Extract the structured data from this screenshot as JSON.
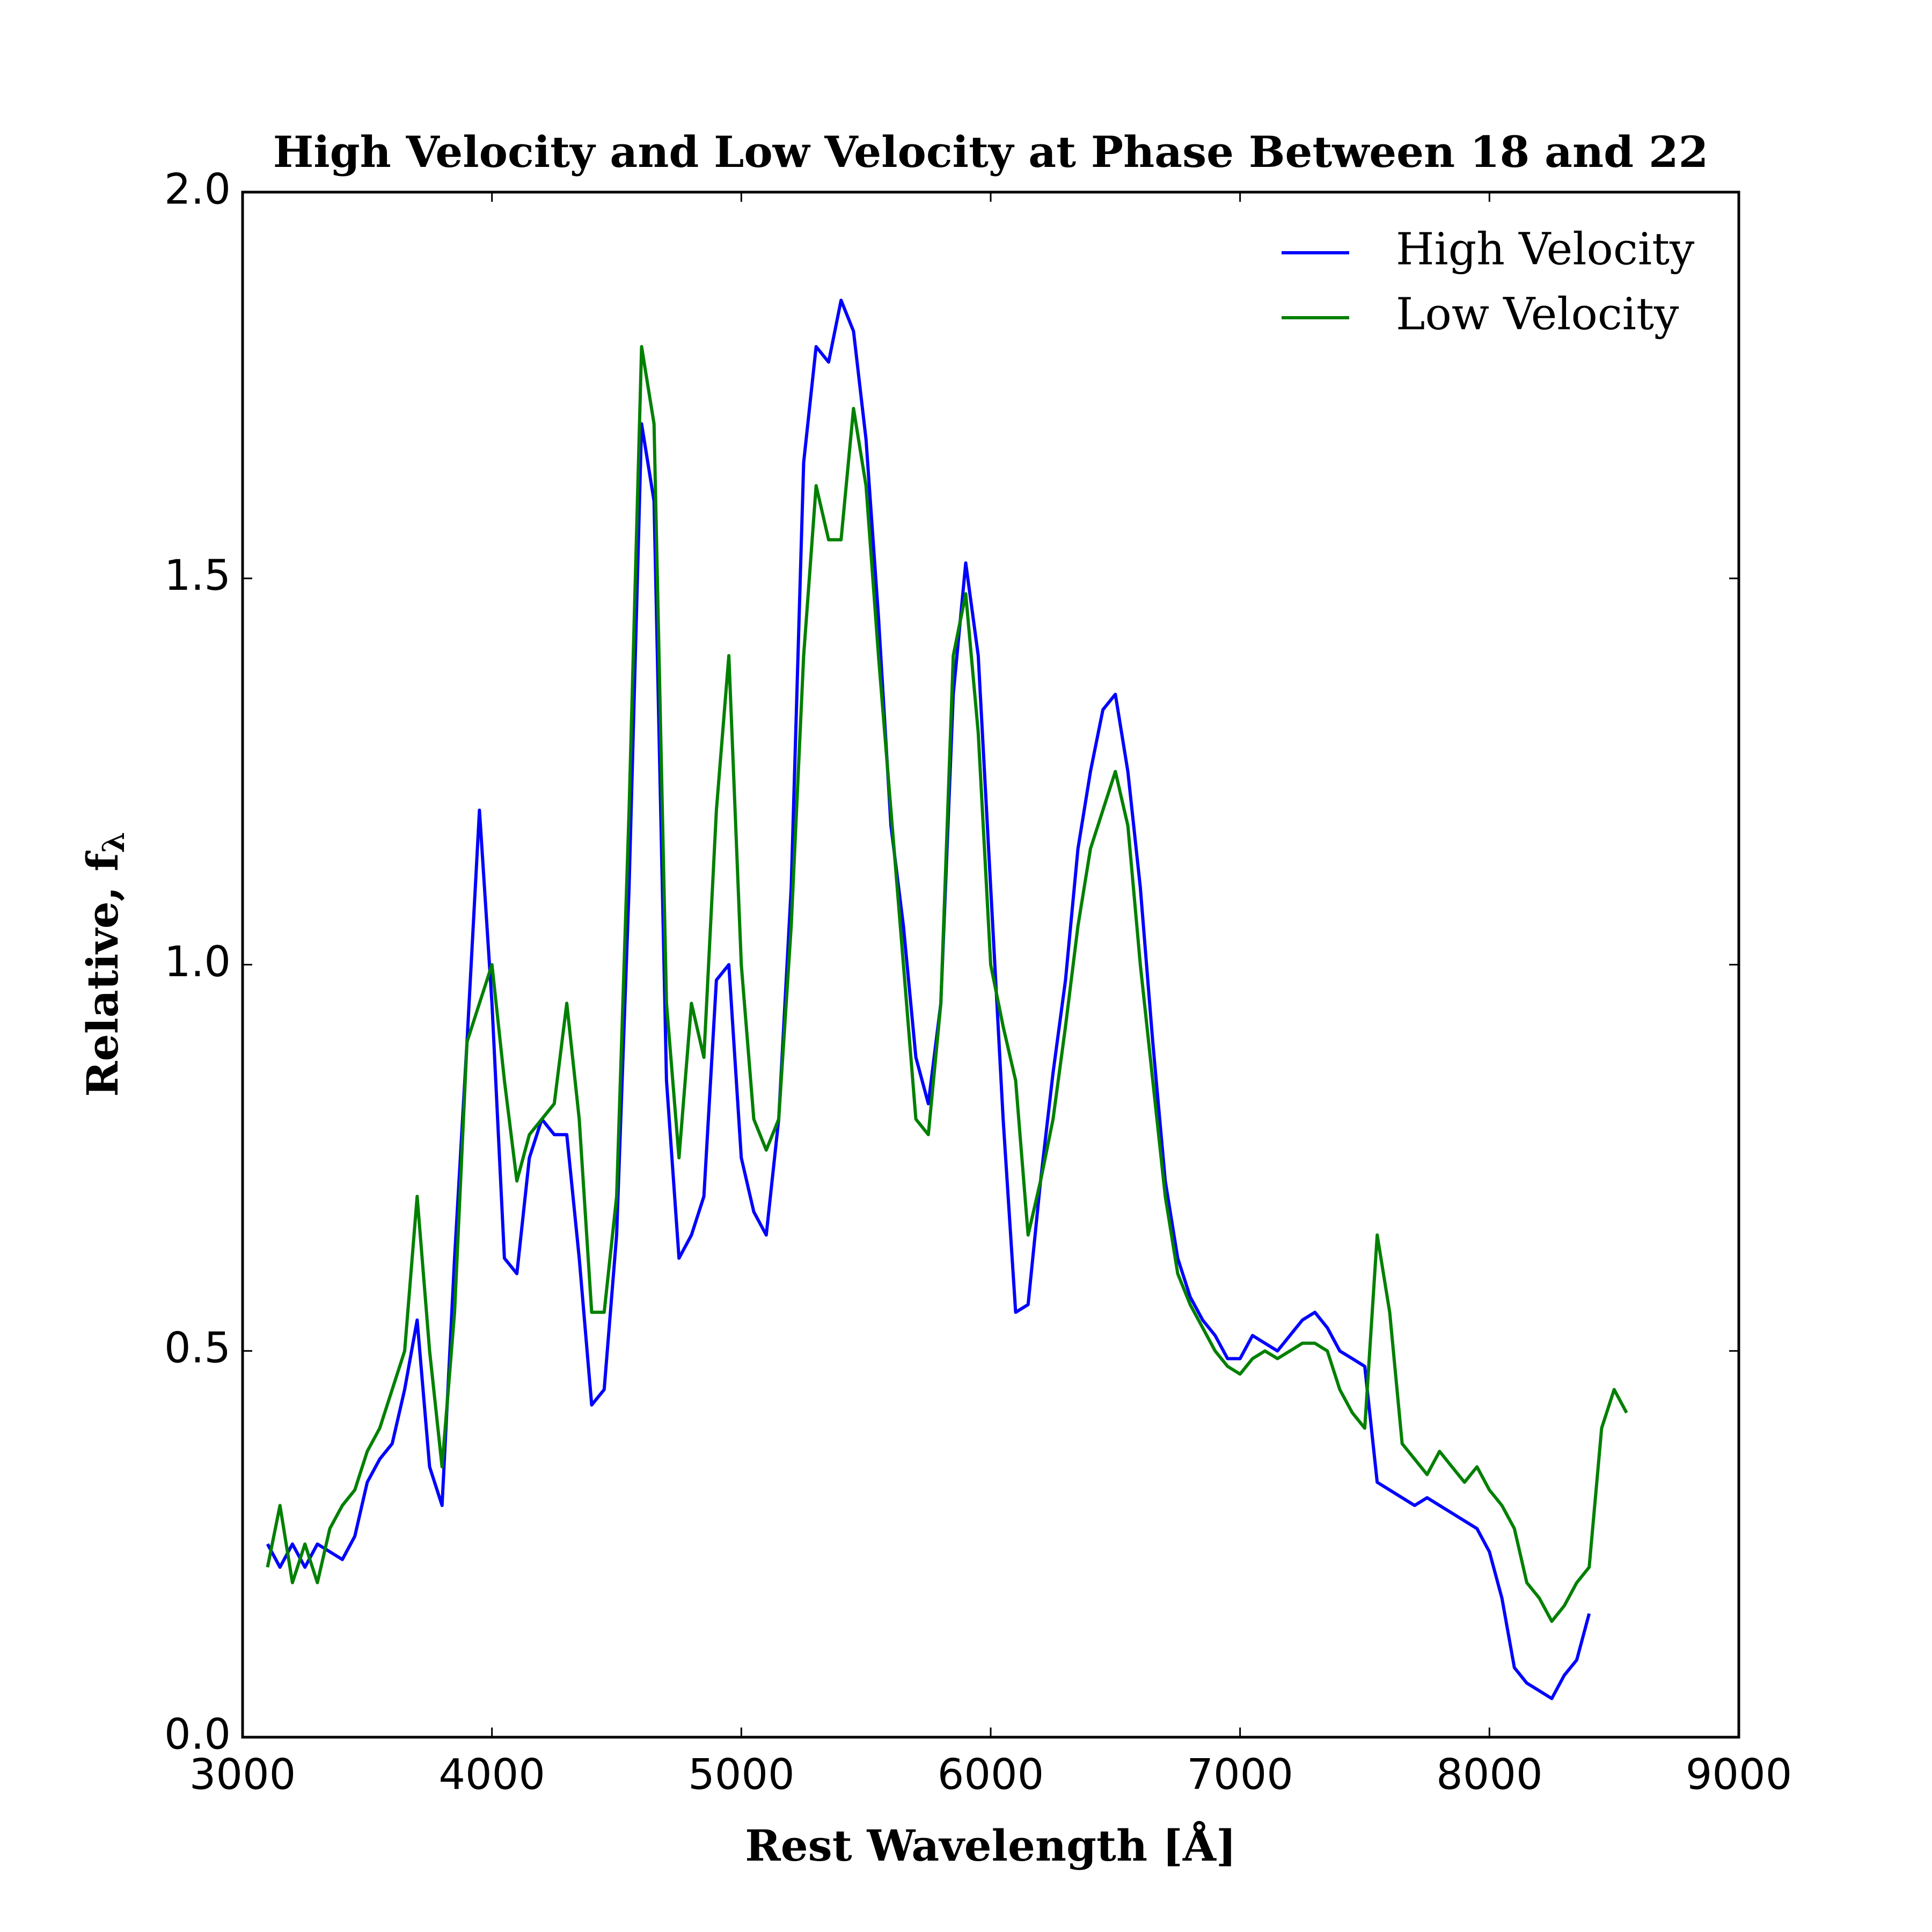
{
  "chart_data": {
    "type": "line",
    "title": "High Velocity and Low Velocity at Phase Between 18 and 22",
    "x_label": "Rest Wavelength [Å]",
    "y_label": "Relative, f",
    "y_label_sub": "λ",
    "x": [
      3100,
      3150,
      3200,
      3250,
      3300,
      3350,
      3400,
      3450,
      3500,
      3550,
      3600,
      3650,
      3700,
      3750,
      3800,
      3850,
      3900,
      3950,
      4000,
      4050,
      4100,
      4150,
      4200,
      4250,
      4300,
      4350,
      4400,
      4450,
      4500,
      4550,
      4600,
      4650,
      4700,
      4750,
      4800,
      4850,
      4900,
      4950,
      5000,
      5050,
      5100,
      5150,
      5200,
      5250,
      5300,
      5350,
      5400,
      5450,
      5500,
      5550,
      5600,
      5650,
      5700,
      5750,
      5800,
      5850,
      5900,
      5950,
      6000,
      6050,
      6100,
      6150,
      6200,
      6250,
      6300,
      6350,
      6400,
      6450,
      6500,
      6550,
      6600,
      6650,
      6700,
      6750,
      6800,
      6850,
      6900,
      6950,
      7000,
      7050,
      7100,
      7150,
      7200,
      7250,
      7300,
      7350,
      7400,
      7450,
      7500,
      7550,
      7600,
      7650,
      7700,
      7750,
      7800,
      7850,
      7900,
      7950,
      8000,
      8050,
      8100,
      8150,
      8200,
      8250,
      8300,
      8350,
      8400,
      8450,
      8500,
      8550
    ],
    "series": [
      {
        "name": "High Velocity",
        "color": "#0000ff",
        "values": [
          0.25,
          0.22,
          0.25,
          0.22,
          0.25,
          0.24,
          0.23,
          0.26,
          0.33,
          0.36,
          0.38,
          0.45,
          0.54,
          0.35,
          0.3,
          0.62,
          0.9,
          1.2,
          0.95,
          0.62,
          0.6,
          0.75,
          0.8,
          0.78,
          0.78,
          0.62,
          0.43,
          0.45,
          0.65,
          1.1,
          1.7,
          1.6,
          0.85,
          0.62,
          0.65,
          0.7,
          0.98,
          1.0,
          0.75,
          0.68,
          0.65,
          0.8,
          1.1,
          1.65,
          1.8,
          1.78,
          1.86,
          1.82,
          1.68,
          1.45,
          1.18,
          1.05,
          0.88,
          0.82,
          0.95,
          1.35,
          1.52,
          1.4,
          1.1,
          0.8,
          0.55,
          0.56,
          0.72,
          0.86,
          0.98,
          1.15,
          1.25,
          1.33,
          1.35,
          1.25,
          1.1,
          0.9,
          0.72,
          0.62,
          0.57,
          0.54,
          0.52,
          0.49,
          0.49,
          0.52,
          0.51,
          0.5,
          0.52,
          0.54,
          0.55,
          0.53,
          0.5,
          0.49,
          0.48,
          0.33,
          0.32,
          0.31,
          0.3,
          0.31,
          0.3,
          0.29,
          0.28,
          0.27,
          0.24,
          0.18,
          0.09,
          0.07,
          0.06,
          0.05,
          0.08,
          0.1,
          0.16,
          null,
          null,
          null
        ]
      },
      {
        "name": "Low Velocity",
        "color": "#008000",
        "values": [
          0.22,
          0.3,
          0.2,
          0.25,
          0.2,
          0.27,
          0.3,
          0.32,
          0.37,
          0.4,
          0.45,
          0.5,
          0.7,
          0.5,
          0.35,
          0.55,
          0.9,
          0.95,
          1.0,
          0.85,
          0.72,
          0.78,
          0.8,
          0.82,
          0.95,
          0.8,
          0.55,
          0.55,
          0.7,
          1.2,
          1.8,
          1.7,
          0.95,
          0.75,
          0.95,
          0.88,
          1.2,
          1.4,
          1.0,
          0.8,
          0.76,
          0.8,
          1.05,
          1.4,
          1.62,
          1.55,
          1.55,
          1.72,
          1.62,
          1.4,
          1.2,
          1.0,
          0.8,
          0.78,
          0.95,
          1.4,
          1.48,
          1.3,
          1.0,
          0.92,
          0.85,
          0.65,
          0.72,
          0.8,
          0.92,
          1.05,
          1.15,
          1.2,
          1.25,
          1.18,
          1.0,
          0.85,
          0.7,
          0.6,
          0.56,
          0.53,
          0.5,
          0.48,
          0.47,
          0.49,
          0.5,
          0.49,
          0.5,
          0.51,
          0.51,
          0.5,
          0.45,
          0.42,
          0.4,
          0.65,
          0.55,
          0.38,
          0.36,
          0.34,
          0.37,
          0.35,
          0.33,
          0.35,
          0.32,
          0.3,
          0.27,
          0.2,
          0.18,
          0.15,
          0.17,
          0.2,
          0.22,
          0.4,
          0.45,
          0.42
        ]
      }
    ],
    "xlim": [
      3000,
      9000
    ],
    "xticks": [
      3000,
      4000,
      5000,
      6000,
      7000,
      8000,
      9000
    ],
    "ylim": [
      0,
      2
    ],
    "yticks": [
      {
        "value": 0,
        "label": "0.0"
      },
      0.5,
      {
        "value": 1,
        "label": "1.0"
      },
      1.5,
      {
        "value": 2,
        "label": "2.0"
      }
    ],
    "legend": "upper right"
  }
}
